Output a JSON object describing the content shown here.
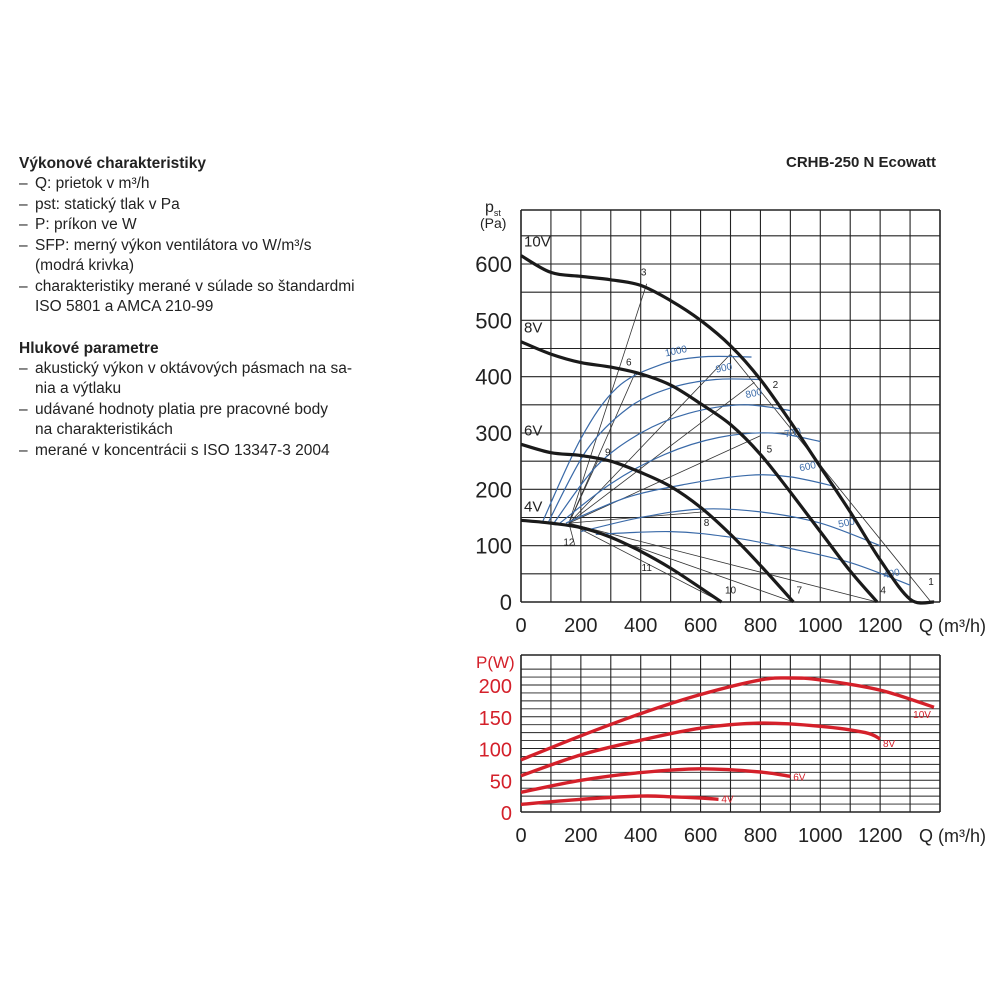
{
  "model": "CRHB-250 N Ecowatt",
  "sections": [
    {
      "title": "Výkonové charakteristiky",
      "items": [
        [
          "Q: prietok v m³/h"
        ],
        [
          "pst: statický tlak v Pa"
        ],
        [
          "P: príkon ve W"
        ],
        [
          "SFP: merný výkon ventilátora vo W/m³/s",
          "(modrá krivka)"
        ],
        [
          "charakteristiky merané v súlade so štandardmi",
          "ISO 5801 a AMCA 210-99"
        ]
      ]
    },
    {
      "title": "Hlukové parametre",
      "items": [
        [
          "akustický výkon v oktávových pásmach na sa-",
          "nia a výtlaku"
        ],
        [
          "udávané hodnoty platia pre pracovné body",
          "na charakteristikách"
        ],
        [
          "merané v koncentrácii s ISO 13347-3 2004"
        ]
      ]
    }
  ],
  "colors": {
    "fan": "#1a1a1a",
    "sfp": "#3a6aa8",
    "power": "#d4202a",
    "grid": "#222222",
    "text": "#222222"
  },
  "chart_data": [
    {
      "type": "line",
      "ylabel": "pst (Pa)",
      "xlabel": "Q (m³/h)",
      "xlim": [
        0,
        1400
      ],
      "ylim": [
        0,
        650
      ],
      "x_ticks": [
        0,
        200,
        400,
        600,
        800,
        1000,
        1200
      ],
      "y_ticks": [
        0,
        100,
        200,
        300,
        400,
        500,
        600
      ],
      "grid": true,
      "series": [
        {
          "name": "10V",
          "points": [
            [
              0,
              615
            ],
            [
              100,
              585
            ],
            [
              200,
              578
            ],
            [
              300,
              572
            ],
            [
              400,
              562
            ],
            [
              500,
              535
            ],
            [
              600,
              500
            ],
            [
              700,
              455
            ],
            [
              800,
              395
            ],
            [
              900,
              320
            ],
            [
              1000,
              240
            ],
            [
              1100,
              160
            ],
            [
              1200,
              75
            ],
            [
              1300,
              5
            ],
            [
              1380,
              0
            ]
          ]
        },
        {
          "name": "8V",
          "points": [
            [
              0,
              462
            ],
            [
              100,
              440
            ],
            [
              200,
              425
            ],
            [
              300,
              417
            ],
            [
              400,
              405
            ],
            [
              500,
              385
            ],
            [
              600,
              352
            ],
            [
              700,
              315
            ],
            [
              800,
              262
            ],
            [
              900,
              195
            ],
            [
              1000,
              125
            ],
            [
              1100,
              55
            ],
            [
              1190,
              0
            ]
          ]
        },
        {
          "name": "6V",
          "points": [
            [
              0,
              280
            ],
            [
              100,
              265
            ],
            [
              200,
              260
            ],
            [
              300,
              250
            ],
            [
              400,
              230
            ],
            [
              500,
              205
            ],
            [
              600,
              168
            ],
            [
              700,
              120
            ],
            [
              800,
              65
            ],
            [
              910,
              0
            ]
          ]
        },
        {
          "name": "4V",
          "points": [
            [
              0,
              145
            ],
            [
              100,
              140
            ],
            [
              200,
              132
            ],
            [
              300,
              115
            ],
            [
              400,
              90
            ],
            [
              500,
              60
            ],
            [
              600,
              25
            ],
            [
              670,
              0
            ]
          ]
        }
      ],
      "sfp_curves": [
        {
          "name": "1000",
          "points": [
            [
              70,
              140
            ],
            [
              200,
              290
            ],
            [
              320,
              380
            ],
            [
              460,
              420
            ],
            [
              600,
              435
            ],
            [
              770,
              435
            ]
          ]
        },
        {
          "name": "900",
          "points": [
            [
              90,
              140
            ],
            [
              220,
              270
            ],
            [
              360,
              345
            ],
            [
              500,
              380
            ],
            [
              650,
              395
            ],
            [
              800,
              395
            ]
          ]
        },
        {
          "name": "800",
          "points": [
            [
              110,
              140
            ],
            [
              250,
              240
            ],
            [
              400,
              300
            ],
            [
              560,
              335
            ],
            [
              740,
              350
            ],
            [
              900,
              340
            ]
          ]
        },
        {
          "name": "700",
          "points": [
            [
              130,
              140
            ],
            [
              300,
              210
            ],
            [
              480,
              262
            ],
            [
              660,
              292
            ],
            [
              840,
              300
            ],
            [
              1000,
              285
            ]
          ]
        },
        {
          "name": "600",
          "points": [
            [
              150,
              140
            ],
            [
              350,
              185
            ],
            [
              560,
              210
            ],
            [
              760,
              225
            ],
            [
              900,
              222
            ],
            [
              1050,
              205
            ]
          ]
        },
        {
          "name": "500",
          "points": [
            [
              200,
              125
            ],
            [
              400,
              150
            ],
            [
              600,
              165
            ],
            [
              800,
              160
            ],
            [
              1000,
              140
            ],
            [
              1200,
              100
            ]
          ]
        },
        {
          "name": "400",
          "points": [
            [
              250,
              120
            ],
            [
              500,
              125
            ],
            [
              700,
              115
            ],
            [
              900,
              95
            ],
            [
              1100,
              70
            ],
            [
              1300,
              30
            ]
          ]
        }
      ],
      "system_lines": [
        {
          "name": "1",
          "points": [
            [
              160,
              140
            ],
            [
              700,
              440
            ],
            [
              1370,
              0
            ]
          ]
        },
        {
          "name": "2",
          "points": [
            [
              160,
              140
            ],
            [
              780,
              390
            ]
          ]
        },
        {
          "name": "3",
          "points": [
            [
              160,
              140
            ],
            [
              420,
              565
            ]
          ]
        },
        {
          "name": "4",
          "points": [
            [
              160,
              140
            ],
            [
              1190,
              0
            ]
          ]
        },
        {
          "name": "5",
          "points": [
            [
              160,
              140
            ],
            [
              800,
              295
            ]
          ]
        },
        {
          "name": "6",
          "points": [
            [
              160,
              140
            ],
            [
              380,
              405
            ]
          ]
        },
        {
          "name": "7",
          "points": [
            [
              160,
              140
            ],
            [
              910,
              0
            ]
          ]
        },
        {
          "name": "8",
          "points": [
            [
              160,
              140
            ],
            [
              610,
              160
            ]
          ]
        },
        {
          "name": "9",
          "points": [
            [
              160,
              140
            ],
            [
              260,
              255
            ]
          ]
        },
        {
          "name": "10",
          "points": [
            [
              160,
              140
            ],
            [
              670,
              0
            ]
          ]
        },
        {
          "name": "11",
          "points": [
            [
              160,
              140
            ],
            [
              400,
              95
            ]
          ]
        },
        {
          "name": "12",
          "points": [
            [
              160,
              140
            ],
            [
              180,
              100
            ]
          ]
        }
      ],
      "point_labels": [
        {
          "name": "1",
          "x": 1370,
          "y": 30
        },
        {
          "name": "2",
          "x": 850,
          "y": 380
        },
        {
          "name": "3",
          "x": 410,
          "y": 580
        },
        {
          "name": "4",
          "x": 1210,
          "y": 15
        },
        {
          "name": "5",
          "x": 830,
          "y": 265
        },
        {
          "name": "6",
          "x": 360,
          "y": 420
        },
        {
          "name": "7",
          "x": 930,
          "y": 15
        },
        {
          "name": "8",
          "x": 620,
          "y": 135
        },
        {
          "name": "9",
          "x": 290,
          "y": 260
        },
        {
          "name": "10",
          "x": 700,
          "y": 15
        },
        {
          "name": "11",
          "x": 420,
          "y": 55
        },
        {
          "name": "12",
          "x": 160,
          "y": 100
        }
      ],
      "sfp_labels": [
        {
          "name": "1000",
          "x": 520,
          "y": 440
        },
        {
          "name": "900",
          "x": 680,
          "y": 410
        },
        {
          "name": "800",
          "x": 780,
          "y": 365
        },
        {
          "name": "700",
          "x": 910,
          "y": 295
        },
        {
          "name": "600",
          "x": 960,
          "y": 235
        },
        {
          "name": "500",
          "x": 1090,
          "y": 135
        },
        {
          "name": "400",
          "x": 1240,
          "y": 45
        }
      ]
    },
    {
      "type": "line",
      "ylabel": "P(W)",
      "xlabel": "Q (m³/h)",
      "xlim": [
        0,
        1400
      ],
      "ylim": [
        0,
        225
      ],
      "x_ticks": [
        0,
        200,
        400,
        600,
        800,
        1000,
        1200
      ],
      "y_ticks": [
        0,
        50,
        100,
        150,
        200
      ],
      "grid": true,
      "series": [
        {
          "name": "10V",
          "points": [
            [
              0,
              82
            ],
            [
              200,
              120
            ],
            [
              400,
              155
            ],
            [
              600,
              185
            ],
            [
              800,
              208
            ],
            [
              900,
              211
            ],
            [
              1000,
              208
            ],
            [
              1200,
              192
            ],
            [
              1380,
              165
            ]
          ]
        },
        {
          "name": "8V",
          "points": [
            [
              0,
              57
            ],
            [
              200,
              90
            ],
            [
              400,
              113
            ],
            [
              600,
              132
            ],
            [
              800,
              140
            ],
            [
              1000,
              135
            ],
            [
              1150,
              125
            ],
            [
              1200,
              115
            ]
          ]
        },
        {
          "name": "6V",
          "points": [
            [
              0,
              31
            ],
            [
              200,
              50
            ],
            [
              400,
              62
            ],
            [
              600,
              68
            ],
            [
              800,
              63
            ],
            [
              900,
              56
            ]
          ]
        },
        {
          "name": "4V",
          "points": [
            [
              0,
              12
            ],
            [
              200,
              20
            ],
            [
              400,
              25
            ],
            [
              500,
              24
            ],
            [
              600,
              22
            ],
            [
              660,
              20
            ]
          ]
        }
      ],
      "line_labels": [
        {
          "name": "10V",
          "x": 1340,
          "y": 148
        },
        {
          "name": "8V",
          "x": 1230,
          "y": 102
        },
        {
          "name": "6V",
          "x": 930,
          "y": 50
        },
        {
          "name": "4V",
          "x": 690,
          "y": 15
        }
      ]
    }
  ]
}
